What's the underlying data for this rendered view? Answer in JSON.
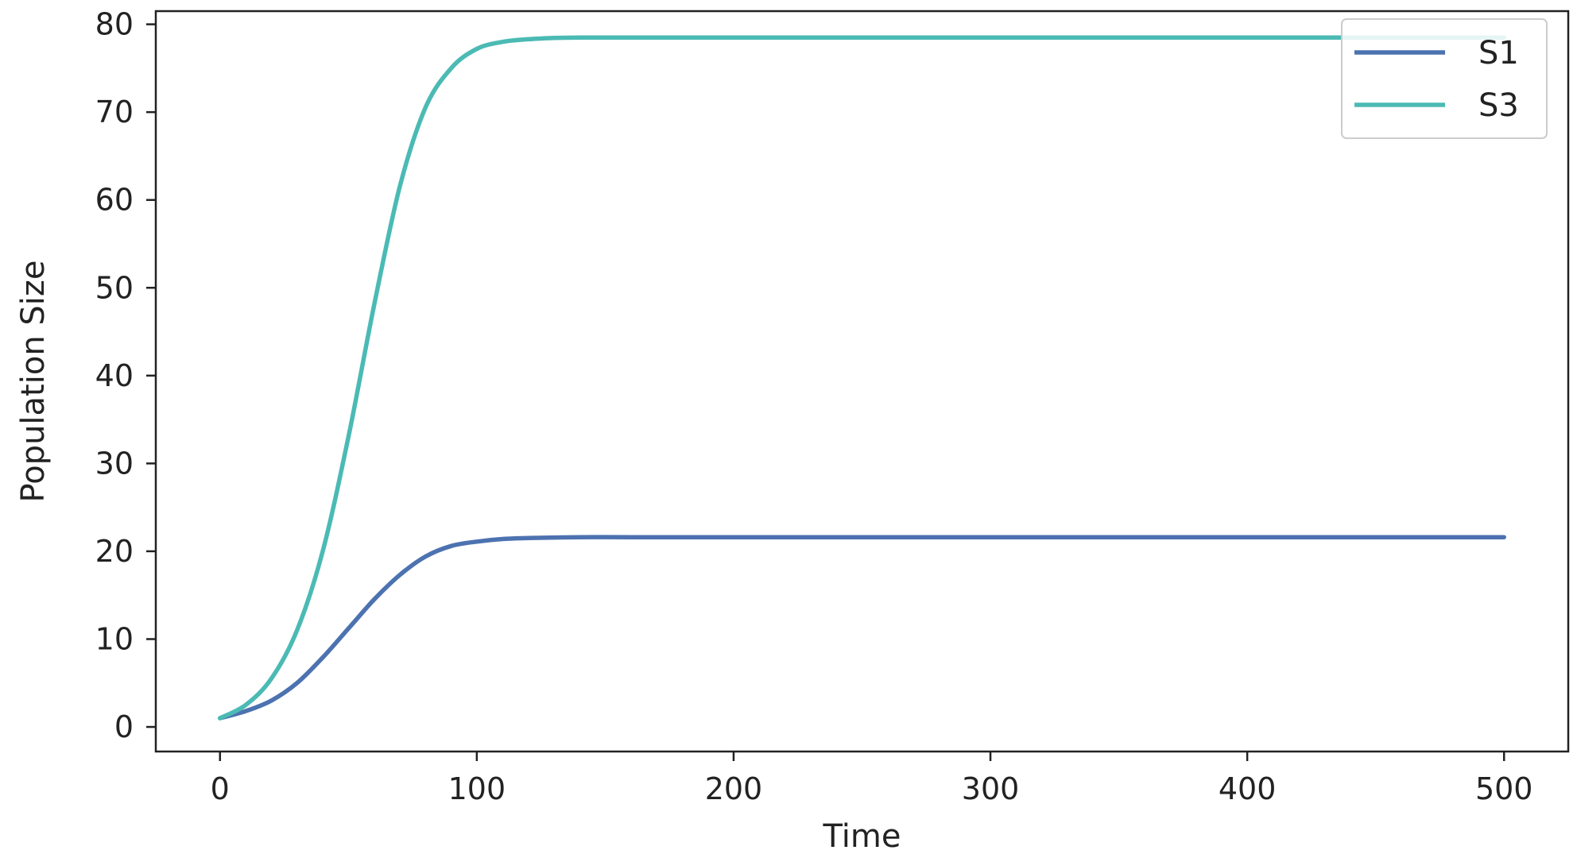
{
  "chart_data": {
    "type": "line",
    "title": "",
    "xlabel": "Time",
    "ylabel": "Population Size",
    "xlim": [
      -25,
      525
    ],
    "ylim": [
      -2.8,
      81.5
    ],
    "xticks": [
      0,
      100,
      200,
      300,
      400,
      500
    ],
    "yticks": [
      0,
      10,
      20,
      30,
      40,
      50,
      60,
      70,
      80
    ],
    "grid": false,
    "legend_position": "top-right",
    "series": [
      {
        "name": "S1",
        "color": "#4c72b0",
        "x": [
          0,
          10,
          20,
          30,
          40,
          50,
          60,
          70,
          80,
          90,
          100,
          110,
          120,
          140,
          160,
          200,
          300,
          400,
          500
        ],
        "y": [
          1.0,
          1.8,
          3.0,
          5.0,
          7.9,
          11.2,
          14.5,
          17.3,
          19.4,
          20.6,
          21.1,
          21.4,
          21.5,
          21.6,
          21.6,
          21.6,
          21.6,
          21.6,
          21.6
        ]
      },
      {
        "name": "S3",
        "color": "#4bbab4",
        "x": [
          0,
          10,
          20,
          30,
          40,
          50,
          60,
          70,
          80,
          90,
          100,
          110,
          120,
          130,
          140,
          160,
          200,
          300,
          400,
          500
        ],
        "y": [
          1.0,
          2.5,
          5.5,
          11.0,
          20.0,
          33.0,
          48.0,
          61.5,
          70.5,
          75.0,
          77.2,
          78.0,
          78.3,
          78.45,
          78.5,
          78.5,
          78.5,
          78.5,
          78.5,
          78.5
        ]
      }
    ]
  }
}
